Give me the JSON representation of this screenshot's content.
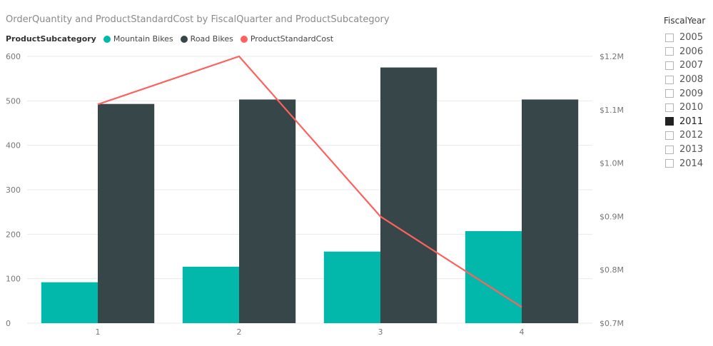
{
  "title": "OrderQuantity and ProductStandardCost by FiscalQuarter and ProductSubcategory",
  "legend": {
    "title": "ProductSubcategory",
    "items": [
      {
        "label": "Mountain Bikes",
        "color": "#01B8AA",
        "icon": "circle-marker"
      },
      {
        "label": "Road Bikes",
        "color": "#374649",
        "icon": "circle-marker"
      },
      {
        "label": "ProductStandardCost",
        "color": "#FD625E",
        "icon": "circle-marker"
      }
    ]
  },
  "slicer": {
    "title": "FiscalYear",
    "options": [
      {
        "label": "2005",
        "checked": false
      },
      {
        "label": "2006",
        "checked": false
      },
      {
        "label": "2007",
        "checked": false
      },
      {
        "label": "2008",
        "checked": false
      },
      {
        "label": "2009",
        "checked": false
      },
      {
        "label": "2010",
        "checked": false
      },
      {
        "label": "2011",
        "checked": true
      },
      {
        "label": "2012",
        "checked": false
      },
      {
        "label": "2013",
        "checked": false
      },
      {
        "label": "2014",
        "checked": false
      }
    ]
  },
  "chart_data": {
    "type": "bar",
    "combo": "clustered column + line (secondary axis)",
    "categories": [
      "1",
      "2",
      "3",
      "4"
    ],
    "series": [
      {
        "name": "Mountain Bikes",
        "type": "bar",
        "axis": "left",
        "color": "#01B8AA",
        "values": [
          92,
          127,
          161,
          207
        ]
      },
      {
        "name": "Road Bikes",
        "type": "bar",
        "axis": "left",
        "color": "#374649",
        "values": [
          493,
          503,
          575,
          503
        ]
      },
      {
        "name": "ProductStandardCost",
        "type": "line",
        "axis": "right",
        "color": "#FD625E",
        "values": [
          1.11,
          1.2,
          0.9,
          0.73
        ]
      }
    ],
    "ylim": [
      0,
      600
    ],
    "yticks": [
      "0",
      "100",
      "200",
      "300",
      "400",
      "500",
      "600"
    ],
    "y2lim": [
      0.7,
      1.2
    ],
    "y2ticks": [
      "$0.7M",
      "$0.8M",
      "$0.9M",
      "$1.0M",
      "$1.1M",
      "$1.2M"
    ],
    "grid": true
  }
}
